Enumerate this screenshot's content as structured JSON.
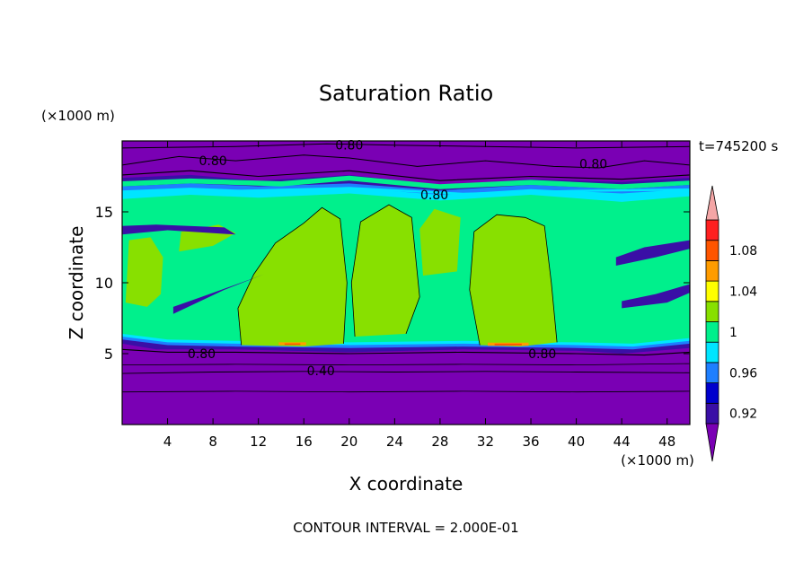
{
  "chart_data": {
    "type": "heatmap",
    "title": "Saturation Ratio",
    "xlabel": "X coordinate",
    "ylabel": "Z coordinate",
    "x_unit": "(×1000 m)",
    "y_unit": "(×1000 m)",
    "time_label": "t=745200 s",
    "footer": "CONTOUR INTERVAL = 2.000E-01",
    "xlim": [
      0,
      50
    ],
    "ylim": [
      0,
      20
    ],
    "x_ticks": [
      4,
      8,
      12,
      16,
      20,
      24,
      28,
      32,
      36,
      40,
      44,
      48
    ],
    "y_ticks": [
      5,
      10,
      15
    ],
    "contour_labels": [
      {
        "text": "0.80",
        "x": 20,
        "y": 19.7
      },
      {
        "text": "0.80",
        "x": 8,
        "y": 18.6
      },
      {
        "text": "0.80",
        "x": 41.5,
        "y": 18.4
      },
      {
        "text": "0.80",
        "x": 27.5,
        "y": 16.2
      },
      {
        "text": "0.80",
        "x": 7,
        "y": 5.0
      },
      {
        "text": "0.80",
        "x": 37,
        "y": 5.0
      },
      {
        "text": "0.40",
        "x": 17.5,
        "y": 3.8
      }
    ],
    "legend": {
      "levels": [
        0.9,
        0.92,
        0.94,
        0.96,
        0.98,
        1.0,
        1.02,
        1.04,
        1.06,
        1.08,
        1.1
      ],
      "labels": [
        {
          "value": 0.92,
          "text": "0.92"
        },
        {
          "value": 0.96,
          "text": "0.96"
        },
        {
          "value": 1.0,
          "text": "1"
        },
        {
          "value": 1.04,
          "text": "1.04"
        },
        {
          "value": 1.08,
          "text": "1.08"
        }
      ],
      "colors": [
        "#3a0fa6",
        "#0000cd",
        "#1e7fff",
        "#00e5ff",
        "#00f08c",
        "#88e000",
        "#ffff00",
        "#ff9c00",
        "#ff5500",
        "#ff2020"
      ],
      "below_color": "#7a00b4",
      "above_color": "#f4a6a6"
    },
    "field_colors": {
      "dry": "#7a00b4",
      "dark_blue": "#3a0fa6",
      "blue": "#1e7fff",
      "cyan": "#00e5ff",
      "green": "#00f08c",
      "lime": "#88e000",
      "yellow": "#ffff00",
      "orange": "#ff9c00",
      "red": "#ff5500"
    }
  }
}
